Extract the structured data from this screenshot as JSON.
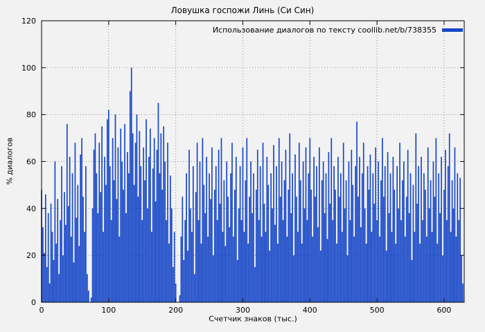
{
  "colors": {
    "accent": "#1747c8",
    "background": "#f2f2f2",
    "grid": "#8c8c8c",
    "frame": "#000000"
  },
  "chart_data": {
    "type": "bar",
    "title": "Ловушка госпожи Линь (Си Син)",
    "legend": "Использование диалогов по тексту coollib.net/b/738355",
    "xlabel": "Счетчик знаков (тыс.)",
    "ylabel": "% диалогов",
    "xlim": [
      0,
      630
    ],
    "ylim": [
      0,
      120
    ],
    "x_ticks": [
      0,
      100,
      200,
      300,
      400,
      500,
      600
    ],
    "y_ticks": [
      0,
      20,
      40,
      60,
      80,
      100,
      120
    ],
    "grid": true,
    "legend_position": "top-right",
    "x_step": 2,
    "values": [
      48,
      32,
      21,
      46,
      15,
      38,
      8,
      42,
      30,
      18,
      60,
      25,
      44,
      12,
      35,
      58,
      20,
      47,
      33,
      76,
      41,
      62,
      28,
      55,
      17,
      68,
      36,
      50,
      24,
      63,
      70,
      45,
      30,
      58,
      12,
      5,
      0,
      2,
      40,
      65,
      72,
      55,
      38,
      68,
      47,
      75,
      30,
      62,
      50,
      78,
      82,
      58,
      35,
      70,
      52,
      80,
      44,
      66,
      28,
      74,
      60,
      48,
      76,
      38,
      64,
      55,
      90,
      100,
      72,
      50,
      68,
      80,
      45,
      73,
      58,
      35,
      66,
      52,
      78,
      40,
      62,
      74,
      30,
      57,
      70,
      43,
      65,
      85,
      55,
      72,
      48,
      75,
      60,
      35,
      68,
      25,
      54,
      40,
      15,
      30,
      8,
      0,
      0,
      3,
      28,
      45,
      18,
      35,
      55,
      22,
      65,
      40,
      30,
      58,
      12,
      47,
      68,
      35,
      60,
      25,
      70,
      50,
      38,
      62,
      28,
      55,
      44,
      66,
      20,
      48,
      58,
      35,
      65,
      42,
      70,
      30,
      52,
      24,
      60,
      45,
      32,
      55,
      68,
      28,
      48,
      62,
      18,
      40,
      58,
      35,
      66,
      30,
      52,
      70,
      25,
      45,
      60,
      38,
      55,
      15,
      48,
      65,
      35,
      58,
      28,
      68,
      42,
      30,
      62,
      50,
      22,
      55,
      40,
      67,
      33,
      58,
      25,
      70,
      45,
      60,
      35,
      52,
      65,
      28,
      48,
      72,
      38,
      55,
      20,
      63,
      45,
      30,
      68,
      52,
      25,
      60,
      40,
      66,
      35,
      55,
      70,
      48,
      28,
      62,
      45,
      58,
      32,
      66,
      22,
      52,
      60,
      38,
      55,
      27,
      64,
      42,
      70,
      35,
      58,
      48,
      25,
      62,
      45,
      55,
      30,
      68,
      40,
      52,
      20,
      60,
      35,
      65,
      50,
      28,
      58,
      77,
      45,
      62,
      32,
      55,
      68,
      40,
      25,
      58,
      48,
      63,
      30,
      55,
      42,
      66,
      35,
      60,
      28,
      52,
      70,
      45,
      58,
      22,
      64,
      38,
      55,
      30,
      62,
      48,
      25,
      58,
      40,
      68,
      35,
      52,
      60,
      28,
      45,
      65,
      38,
      55,
      18,
      50,
      30,
      72,
      42,
      58,
      25,
      62,
      35,
      55,
      48,
      28,
      66,
      40,
      52,
      30,
      60,
      45,
      70,
      25,
      55,
      38,
      62,
      20,
      48,
      65,
      35,
      58,
      72,
      30,
      52,
      40,
      66,
      28,
      55,
      35,
      53,
      20,
      8
    ]
  }
}
